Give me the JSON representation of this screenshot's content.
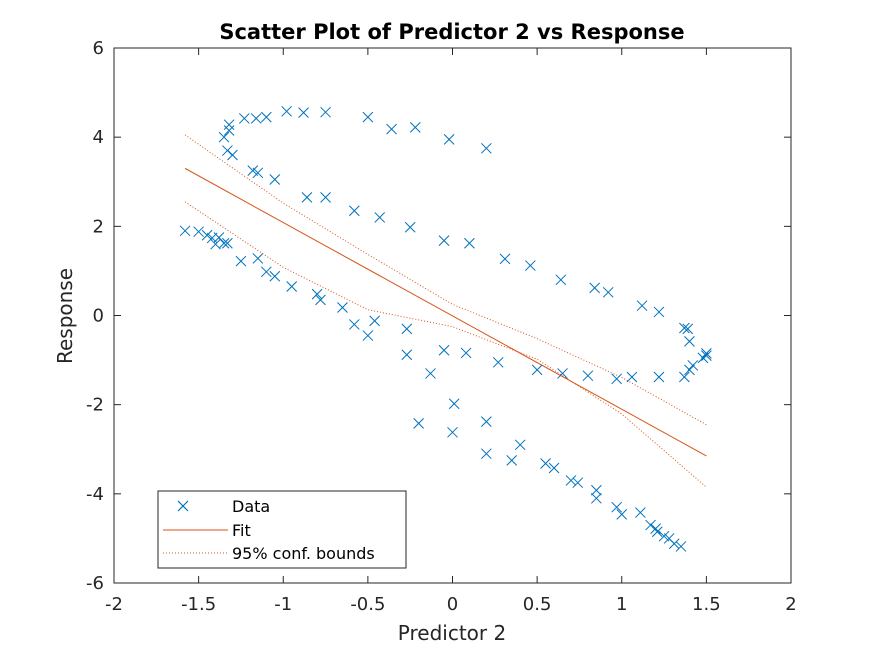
{
  "chart_data": {
    "type": "scatter",
    "title": "Scatter Plot of Predictor 2 vs Response",
    "xlabel": "Predictor 2",
    "ylabel": "Response",
    "xlim": [
      -2,
      2
    ],
    "ylim": [
      -6,
      6
    ],
    "xticks": [
      "-2",
      "-1.5",
      "-1",
      "-0.5",
      "0",
      "0.5",
      "1",
      "1.5",
      "2"
    ],
    "yticks": [
      "-6",
      "-4",
      "-2",
      "0",
      "2",
      "4",
      "6"
    ],
    "grid": false,
    "legend": {
      "position": "bottom-left",
      "entries": [
        "Data",
        "Fit",
        "95% conf. bounds"
      ]
    },
    "colors": {
      "data": "#0072bd",
      "fit": "#d95319",
      "bounds": "#d95319",
      "axes": "#262626"
    },
    "series": [
      {
        "name": "Data",
        "marker": "x",
        "points": [
          [
            -1.58,
            1.9
          ],
          [
            -1.5,
            1.88
          ],
          [
            -1.45,
            1.8
          ],
          [
            -1.42,
            1.74
          ],
          [
            -1.4,
            1.6
          ],
          [
            -1.38,
            1.75
          ],
          [
            -1.35,
            1.62
          ],
          [
            -1.33,
            1.62
          ],
          [
            -1.25,
            1.22
          ],
          [
            -1.15,
            1.28
          ],
          [
            -1.1,
            0.98
          ],
          [
            -1.05,
            0.88
          ],
          [
            -0.95,
            0.65
          ],
          [
            -0.8,
            0.48
          ],
          [
            -0.78,
            0.35
          ],
          [
            -0.65,
            0.18
          ],
          [
            -0.58,
            -0.2
          ],
          [
            -0.5,
            -0.45
          ],
          [
            -0.46,
            -0.12
          ],
          [
            -0.27,
            -0.3
          ],
          [
            -0.27,
            -0.88
          ],
          [
            -0.2,
            -2.42
          ],
          [
            -0.13,
            -1.3
          ],
          [
            -0.05,
            -0.78
          ],
          [
            0.0,
            -2.62
          ],
          [
            0.01,
            -1.98
          ],
          [
            0.08,
            -0.84
          ],
          [
            0.2,
            -2.38
          ],
          [
            0.2,
            -3.1
          ],
          [
            0.27,
            -1.05
          ],
          [
            0.35,
            -3.25
          ],
          [
            0.4,
            -2.9
          ],
          [
            0.55,
            -3.32
          ],
          [
            0.6,
            -3.42
          ],
          [
            0.7,
            -3.7
          ],
          [
            0.74,
            -3.75
          ],
          [
            0.85,
            -3.92
          ],
          [
            0.85,
            -4.1
          ],
          [
            0.97,
            -4.3
          ],
          [
            1.0,
            -4.46
          ],
          [
            1.11,
            -4.42
          ],
          [
            1.17,
            -4.7
          ],
          [
            1.2,
            -4.78
          ],
          [
            1.21,
            -4.85
          ],
          [
            1.25,
            -4.95
          ],
          [
            1.28,
            -5.0
          ],
          [
            1.31,
            -5.12
          ],
          [
            1.35,
            -5.18
          ],
          [
            1.37,
            -1.38
          ],
          [
            1.4,
            -1.22
          ],
          [
            1.42,
            -1.12
          ],
          [
            1.48,
            -0.95
          ],
          [
            1.5,
            -0.85
          ],
          [
            1.5,
            -0.9
          ],
          [
            1.37,
            -0.28
          ],
          [
            1.39,
            -0.3
          ],
          [
            1.4,
            -0.58
          ],
          [
            1.22,
            0.08
          ],
          [
            1.12,
            0.22
          ],
          [
            0.92,
            0.52
          ],
          [
            0.84,
            0.62
          ],
          [
            0.64,
            0.8
          ],
          [
            0.46,
            1.12
          ],
          [
            0.31,
            1.27
          ],
          [
            0.1,
            1.62
          ],
          [
            -0.05,
            1.68
          ],
          [
            -0.25,
            1.98
          ],
          [
            -0.43,
            2.2
          ],
          [
            -0.58,
            2.35
          ],
          [
            -0.75,
            2.65
          ],
          [
            -0.86,
            2.65
          ],
          [
            -1.05,
            3.05
          ],
          [
            -1.15,
            3.2
          ],
          [
            -1.18,
            3.25
          ],
          [
            -1.3,
            3.6
          ],
          [
            -1.33,
            3.7
          ],
          [
            -1.35,
            4.0
          ],
          [
            -1.32,
            4.15
          ],
          [
            -1.32,
            4.28
          ],
          [
            -1.23,
            4.42
          ],
          [
            -1.16,
            4.42
          ],
          [
            -1.1,
            4.45
          ],
          [
            -0.98,
            4.58
          ],
          [
            -0.88,
            4.55
          ],
          [
            -0.75,
            4.56
          ],
          [
            -0.5,
            4.45
          ],
          [
            -0.36,
            4.18
          ],
          [
            -0.22,
            4.22
          ],
          [
            -0.02,
            3.95
          ],
          [
            0.2,
            3.75
          ],
          [
            1.22,
            -1.38
          ],
          [
            1.06,
            -1.38
          ],
          [
            0.97,
            -1.42
          ],
          [
            0.8,
            -1.35
          ],
          [
            0.65,
            -1.3
          ],
          [
            0.5,
            -1.22
          ]
        ]
      },
      {
        "name": "Fit",
        "points": [
          [
            -1.58,
            3.3
          ],
          [
            1.5,
            -3.15
          ]
        ]
      },
      {
        "name": "95% conf. bounds",
        "lower": [
          [
            -1.58,
            2.55
          ],
          [
            -1.0,
            1.08
          ],
          [
            -0.5,
            0.13
          ],
          [
            0.0,
            -0.25
          ],
          [
            0.5,
            -0.98
          ],
          [
            1.0,
            -2.21
          ],
          [
            1.5,
            -3.85
          ]
        ],
        "upper": [
          [
            -1.58,
            4.05
          ],
          [
            -1.0,
            2.52
          ],
          [
            -0.5,
            1.37
          ],
          [
            0.0,
            0.25
          ],
          [
            0.5,
            -0.52
          ],
          [
            1.0,
            -1.39
          ],
          [
            1.5,
            -2.45
          ]
        ]
      }
    ]
  }
}
